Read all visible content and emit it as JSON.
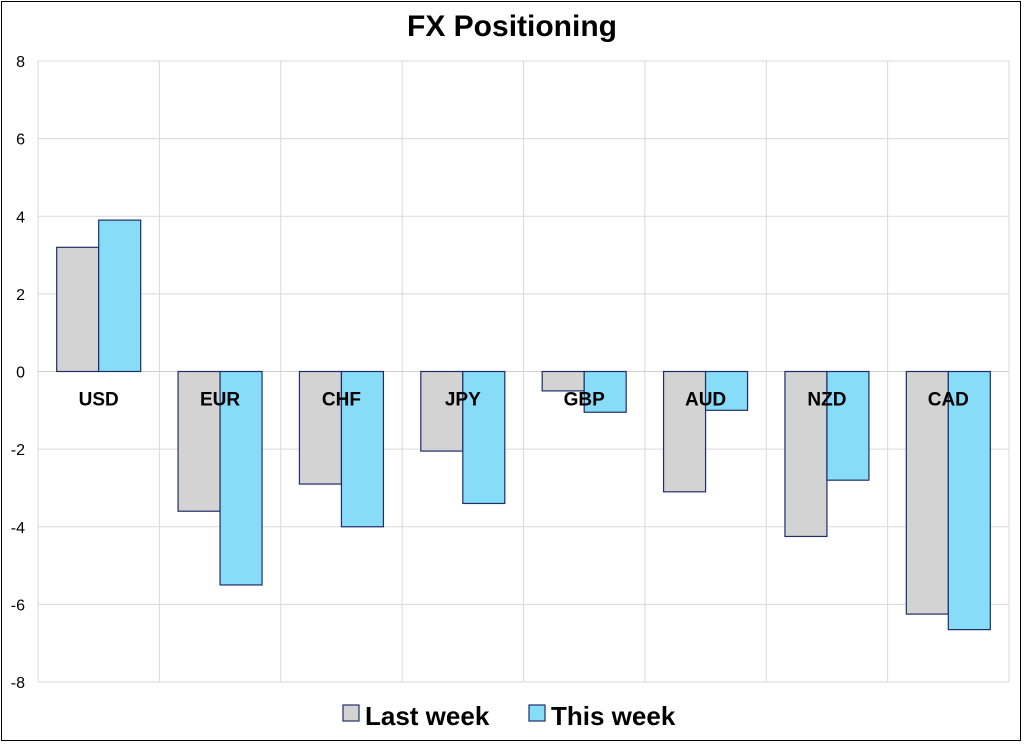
{
  "chart_data": {
    "type": "bar",
    "title": "FX Positioning",
    "categories": [
      "USD",
      "EUR",
      "CHF",
      "JPY",
      "GBP",
      "AUD",
      "NZD",
      "CAD"
    ],
    "series": [
      {
        "name": "Last week",
        "values": [
          3.2,
          -3.6,
          -2.9,
          -2.05,
          -0.5,
          -3.1,
          -4.25,
          -6.25
        ],
        "color": "#d3d3d3"
      },
      {
        "name": "This week",
        "values": [
          3.9,
          -5.5,
          -4.0,
          -3.4,
          -1.05,
          -1.0,
          -2.8,
          -6.65
        ],
        "color": "#87dcf8"
      }
    ],
    "ylim": [
      -8,
      8
    ],
    "yticks": [
      -8,
      -6,
      -4,
      -2,
      0,
      2,
      4,
      6,
      8
    ],
    "ytick_labels": [
      "-8",
      "-6",
      "-4",
      "-2",
      "0",
      "2",
      "4",
      "6",
      "8"
    ],
    "bar_edge_color": "#1f2d6b",
    "grid": true,
    "legend": "bottom"
  }
}
